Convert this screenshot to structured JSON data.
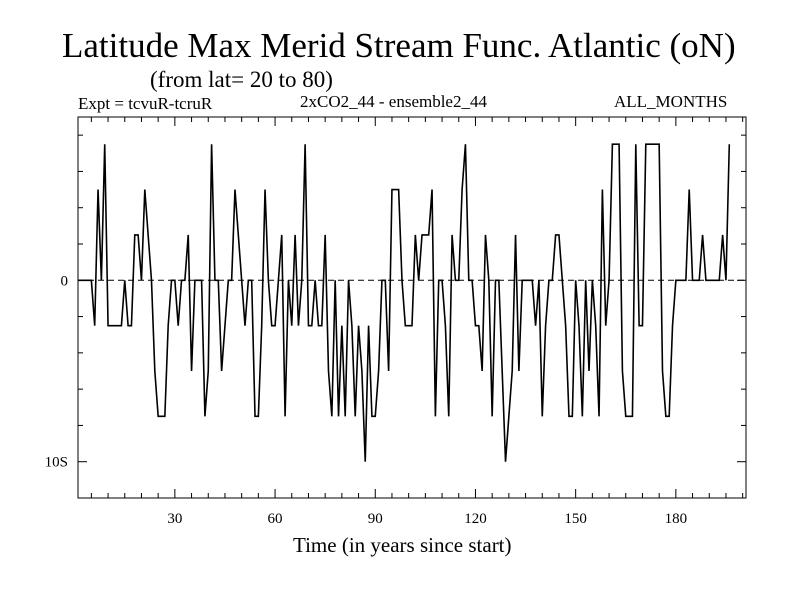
{
  "chart_data": {
    "type": "line",
    "title": "Latitude Max Merid Stream Func. Atlantic (oN)",
    "subtitle": "(from lat= 20 to 80)",
    "experiment_label": "Expt = tcvuR-tcruR",
    "ensemble_label": "2xCO2_44 - ensemble2_44",
    "months_label": "ALL_MONTHS",
    "xlabel": "Time (in years since start)",
    "ylabel": "",
    "xlim": [
      1,
      201
    ],
    "ylim": [
      -12,
      9
    ],
    "x_ticks": [
      30,
      60,
      90,
      120,
      150,
      180
    ],
    "y_ticks": [
      {
        "value": 0,
        "label": "0"
      },
      {
        "value": -10,
        "label": "10S"
      }
    ],
    "zero_line": "dashed",
    "step": true,
    "series": [
      {
        "name": "Latitude Max Merid Stream Func.",
        "x_start": 1,
        "values": [
          0,
          0,
          0,
          0,
          0,
          -2.5,
          5,
          0,
          7.5,
          -2.5,
          -2.5,
          -2.5,
          -2.5,
          -2.5,
          0,
          -2.5,
          -2.5,
          2.5,
          2.5,
          0,
          5,
          2.5,
          0,
          -5,
          -7.5,
          -7.5,
          -7.5,
          -2.5,
          0,
          0,
          -2.5,
          0,
          0,
          2.5,
          -5,
          0,
          0,
          0,
          -7.5,
          -5,
          7.5,
          0,
          0,
          -5,
          -2.5,
          0,
          0,
          5,
          2.5,
          0,
          -2.5,
          0,
          0,
          -7.5,
          -7.5,
          -2.5,
          5,
          0,
          -2.5,
          -2.5,
          0,
          2.5,
          -7.5,
          0,
          -2.5,
          2.5,
          -2.5,
          0,
          7.5,
          -2.5,
          -2.5,
          0,
          -2.5,
          -2.5,
          2.5,
          -5,
          -7.5,
          0,
          -7.5,
          -2.5,
          -7.5,
          0,
          -2.5,
          -7.5,
          -2.5,
          -5,
          -10,
          -2.5,
          -7.5,
          -7.5,
          -5,
          0,
          0,
          -5,
          5,
          5,
          5,
          0,
          -2.5,
          -2.5,
          -2.5,
          2.5,
          0,
          2.5,
          2.5,
          2.5,
          5,
          -7.5,
          0,
          0,
          -2.5,
          -7.5,
          2.5,
          0,
          0,
          5,
          7.5,
          0,
          0,
          -2.5,
          -2.5,
          -5,
          2.5,
          0,
          -7.5,
          0,
          0,
          -5,
          -10,
          -7.5,
          -5,
          2.5,
          -5,
          0,
          0,
          0,
          0,
          -2.5,
          0,
          -7.5,
          -2.5,
          0,
          0,
          2.5,
          2.5,
          0,
          -2.5,
          -7.5,
          -7.5,
          0,
          -2.5,
          -7.5,
          0,
          -5,
          0,
          -2.5,
          -7.5,
          5,
          -2.5,
          0,
          7.5,
          7.5,
          7.5,
          -5,
          -7.5,
          -7.5,
          -7.5,
          7.5,
          -2.5,
          -2.5,
          7.5,
          7.5,
          7.5,
          7.5,
          7.5,
          -5,
          -7.5,
          -7.5,
          -2.5,
          0,
          0,
          0,
          0,
          5,
          0,
          0,
          0,
          2.5,
          0,
          0,
          0,
          0,
          0,
          2.5,
          0,
          7.5
        ]
      }
    ]
  }
}
